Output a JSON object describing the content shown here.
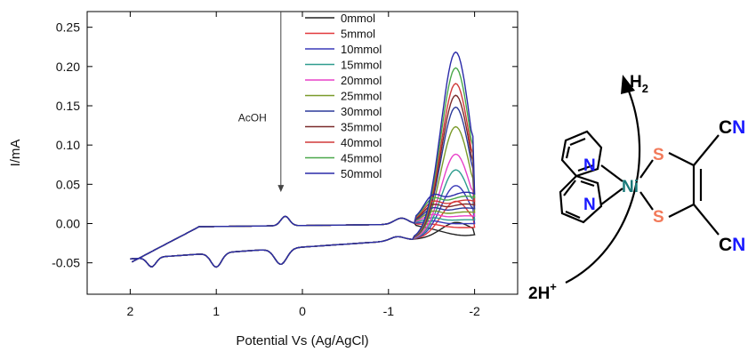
{
  "chart_data": {
    "type": "line",
    "xlabel": "Potential Vs (Ag/AgCl)",
    "ylabel": "I/mA",
    "xlim": [
      2.5,
      -2.5
    ],
    "ylim": [
      -0.09,
      0.27
    ],
    "x_ticks": [
      2,
      1,
      0,
      -1,
      -2
    ],
    "x_tick_labels": [
      "2",
      "1",
      "0",
      "-1",
      "-2"
    ],
    "y_ticks": [
      -0.05,
      0.0,
      0.05,
      0.1,
      0.15,
      0.2,
      0.25
    ],
    "y_tick_labels": [
      "-0.05",
      "0.00",
      "0.05",
      "0.10",
      "0.15",
      "0.20",
      "0.25"
    ],
    "grid": false,
    "legend_placement": "top-right",
    "annotation": {
      "text": "AcOH",
      "x": 0.25,
      "y_from": 0.27,
      "y_to": 0.04
    },
    "series": [
      {
        "name": "0mmol",
        "color": "#222222",
        "peak": 0.028,
        "ret": -0.015
      },
      {
        "name": "5mmol",
        "color": "#e2383c",
        "peak": 0.055,
        "ret": -0.005
      },
      {
        "name": "10mmol",
        "color": "#3a3ab8",
        "peak": 0.075,
        "ret": 0.0
      },
      {
        "name": "15mmol",
        "color": "#2f9d8f",
        "peak": 0.095,
        "ret": 0.005
      },
      {
        "name": "20mmol",
        "color": "#e840c8",
        "peak": 0.115,
        "ret": 0.01
      },
      {
        "name": "25mmol",
        "color": "#7a9a2a",
        "peak": 0.15,
        "ret": 0.015
      },
      {
        "name": "30mmol",
        "color": "#2c3a9a",
        "peak": 0.175,
        "ret": 0.02
      },
      {
        "name": "35mmol",
        "color": "#7a2a2a",
        "peak": 0.19,
        "ret": 0.025
      },
      {
        "name": "40mmol",
        "color": "#d03a3a",
        "peak": 0.205,
        "ret": 0.03
      },
      {
        "name": "45mmol",
        "color": "#4aa84a",
        "peak": 0.225,
        "ret": 0.035
      },
      {
        "name": "50mmol",
        "color": "#2a2aa8",
        "peak": 0.245,
        "ret": 0.04
      }
    ]
  },
  "scheme": {
    "h2_label": "H",
    "h2_sub": "2",
    "proton_label": "2H",
    "proton_sup": "+",
    "metal_label": "Ni",
    "n_label": "N",
    "s_label": "S",
    "cn_c_label": "C",
    "cn_n_label": "N",
    "colors": {
      "metal": "#1a7a7a",
      "nitrogen": "#1a1aff",
      "sulfur": "#f27a5a",
      "bond": "#000000"
    }
  }
}
